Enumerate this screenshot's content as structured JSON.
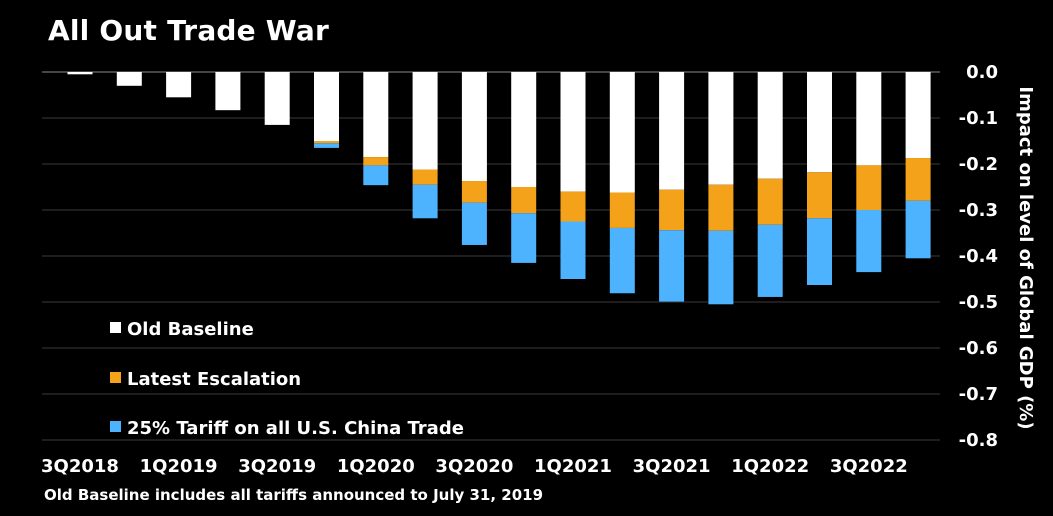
{
  "title": "All Out Trade War",
  "footnote": "Old Baseline includes all tariffs announced to July 31, 2019",
  "colors": {
    "background": "#000000",
    "text": "#ffffff",
    "grid": "#3a3a3a",
    "old_baseline": "#ffffff",
    "latest_escalation": "#f5a21b",
    "tariff_25": "#4db3ff"
  },
  "chart_data": {
    "type": "bar",
    "stacked": true,
    "title": "All Out Trade War",
    "ylabel": "Impact on level of Global GDP (%)",
    "ylim": [
      -0.8,
      0.0
    ],
    "yticks": [
      0.0,
      -0.1,
      -0.2,
      -0.3,
      -0.4,
      -0.5,
      -0.6,
      -0.7,
      -0.8
    ],
    "ytick_labels": [
      "0.0",
      "-0.1",
      "-0.2",
      "-0.3",
      "-0.4",
      "-0.5",
      "-0.6",
      "-0.7",
      "-0.8"
    ],
    "yaxis_side": "right",
    "grid": true,
    "legend_position": "bottom-left",
    "categories": [
      "3Q2018",
      "4Q2018",
      "1Q2019",
      "2Q2019",
      "3Q2019",
      "4Q2019",
      "1Q2020",
      "2Q2020",
      "3Q2020",
      "4Q2020",
      "1Q2021",
      "2Q2021",
      "3Q2021",
      "4Q2021",
      "1Q2022",
      "2Q2022",
      "3Q2022",
      "4Q2022"
    ],
    "xtick_labels": [
      "3Q2018",
      "1Q2019",
      "3Q2019",
      "1Q2020",
      "3Q2020",
      "1Q2021",
      "3Q2021",
      "1Q2022",
      "3Q2022"
    ],
    "series": [
      {
        "name": "Old Baseline",
        "color": "#ffffff",
        "values": [
          -0.005,
          -0.03,
          -0.055,
          -0.083,
          -0.115,
          -0.15,
          -0.185,
          -0.212,
          -0.237,
          -0.25,
          -0.26,
          -0.262,
          -0.256,
          -0.245,
          -0.232,
          -0.218,
          -0.203,
          -0.187
        ]
      },
      {
        "name": "Latest Escalation",
        "color": "#f5a21b",
        "values": [
          0,
          0,
          0,
          0,
          0,
          -0.005,
          -0.018,
          -0.033,
          -0.047,
          -0.057,
          -0.065,
          -0.077,
          -0.088,
          -0.1,
          -0.1,
          -0.1,
          -0.097,
          -0.093
        ]
      },
      {
        "name": "25% Tariff on all U.S. China Trade",
        "color": "#4db3ff",
        "values": [
          0,
          0,
          0,
          0,
          0,
          -0.01,
          -0.043,
          -0.073,
          -0.092,
          -0.108,
          -0.125,
          -0.142,
          -0.155,
          -0.16,
          -0.157,
          -0.145,
          -0.135,
          -0.125
        ]
      }
    ]
  }
}
